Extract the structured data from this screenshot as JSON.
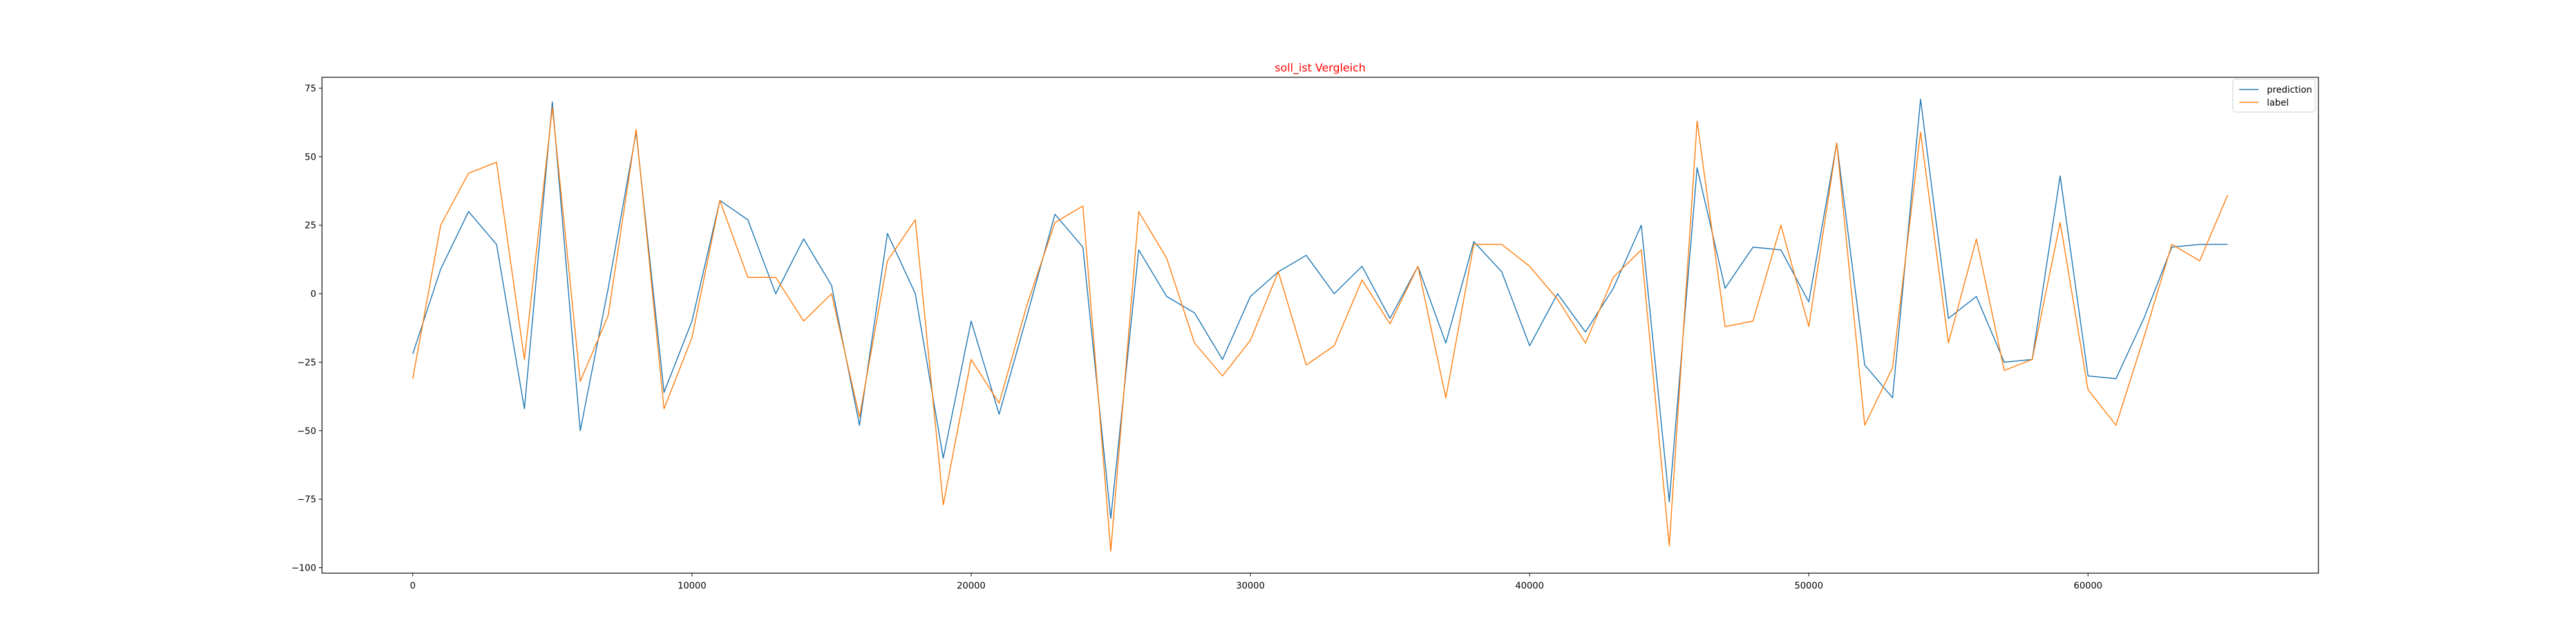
{
  "chart_data": {
    "type": "line",
    "title": "soll_ist Vergleich",
    "title_color": "#ff0000",
    "xlabel": "",
    "ylabel": "",
    "xlim": [
      -3250,
      68250
    ],
    "ylim": [
      -102,
      79
    ],
    "x_ticks": [
      0,
      10000,
      20000,
      30000,
      40000,
      50000,
      60000
    ],
    "y_ticks": [
      -100,
      -75,
      -50,
      -25,
      0,
      25,
      50,
      75
    ],
    "grid": false,
    "legend_position": "top-right",
    "x": [
      0,
      1000,
      2000,
      3000,
      4000,
      5000,
      6000,
      7000,
      8000,
      9000,
      10000,
      11000,
      12000,
      13000,
      14000,
      15000,
      16000,
      17000,
      18000,
      19000,
      20000,
      21000,
      22000,
      23000,
      24000,
      25000,
      26000,
      27000,
      28000,
      29000,
      30000,
      31000,
      32000,
      33000,
      34000,
      35000,
      36000,
      37000,
      38000,
      39000,
      40000,
      41000,
      42000,
      43000,
      44000,
      45000,
      46000,
      47000,
      48000,
      49000,
      50000,
      51000,
      52000,
      53000,
      54000,
      55000,
      56000,
      57000,
      58000,
      59000,
      60000,
      61000,
      62000,
      63000,
      64000,
      65000
    ],
    "series": [
      {
        "name": "prediction",
        "color": "#1f77b4",
        "values": [
          -22,
          9,
          30,
          18,
          -42,
          70,
          -50,
          2,
          59,
          -36,
          -10,
          34,
          27,
          0,
          20,
          3,
          -48,
          22,
          0,
          -60,
          -10,
          -44,
          -8,
          29,
          17,
          -82,
          16,
          -1,
          -7,
          -24,
          -1,
          8,
          14,
          0,
          10,
          -9,
          10,
          -18,
          19,
          8,
          -19,
          0,
          -14,
          2,
          25,
          -76,
          46,
          2,
          17,
          16,
          -3,
          55,
          -26,
          -38,
          71,
          -9,
          -1,
          -25,
          -24,
          43,
          -30,
          -31,
          -9,
          17,
          18,
          18
        ]
      },
      {
        "name": "label",
        "color": "#ff7f0e",
        "values": [
          -31,
          25,
          44,
          48,
          -24,
          68,
          -32,
          -8,
          60,
          -42,
          -16,
          34,
          6,
          6,
          -10,
          0,
          -45,
          12,
          27,
          -77,
          -24,
          -40,
          -4,
          26,
          32,
          -94,
          30,
          13,
          -18,
          -30,
          -17,
          8,
          -26,
          -19,
          5,
          -11,
          10,
          -38,
          18,
          18,
          10,
          -2,
          -18,
          6,
          16,
          -92,
          63,
          -12,
          -10,
          25,
          -12,
          55,
          -48,
          -27,
          59,
          -18,
          20,
          -28,
          -24,
          26,
          -35,
          -48,
          -16,
          18,
          12,
          36
        ]
      }
    ]
  }
}
